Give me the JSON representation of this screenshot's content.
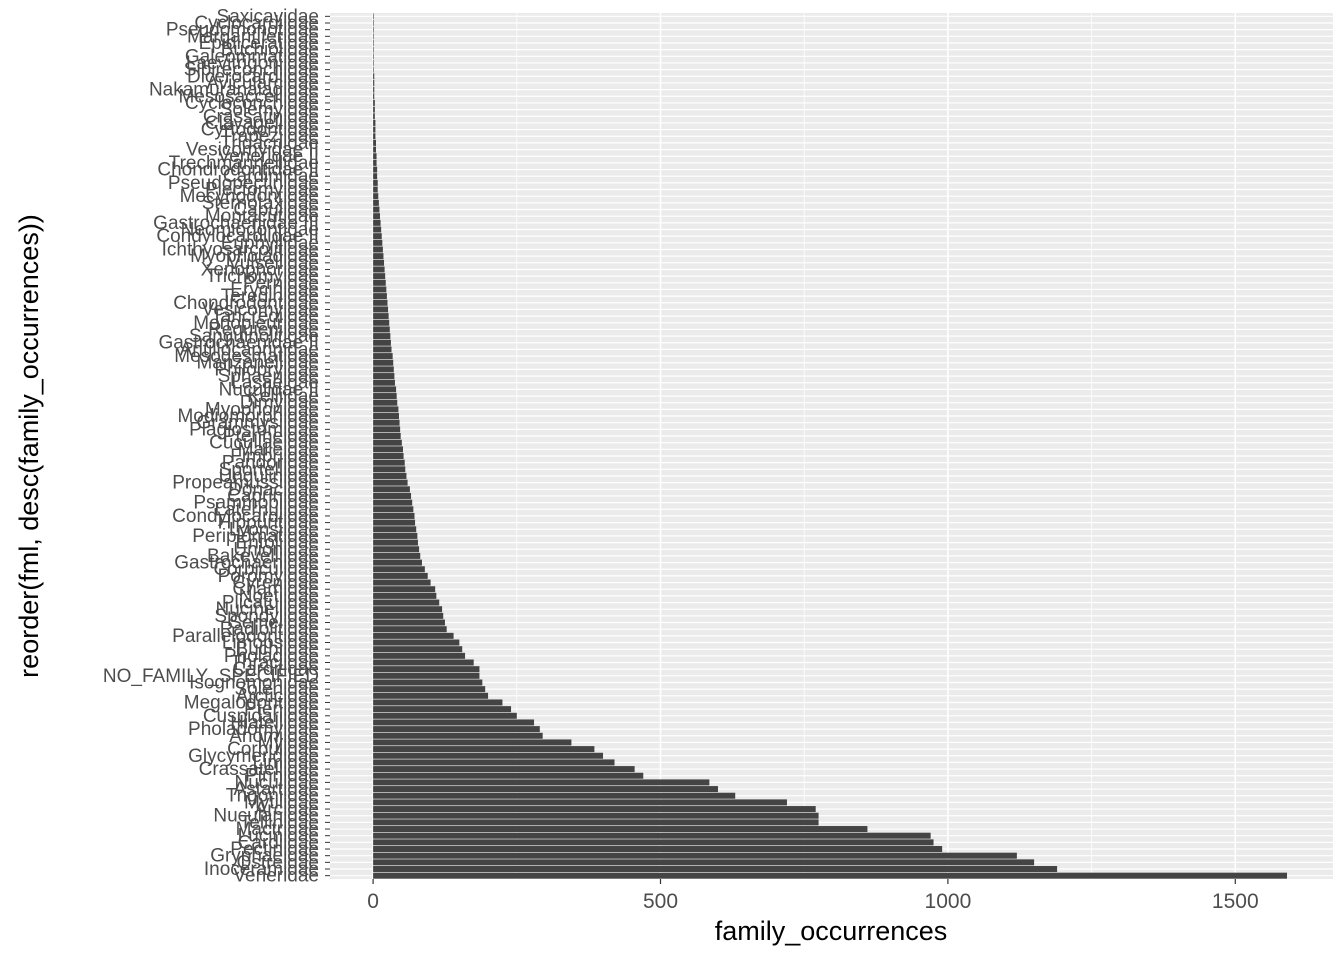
{
  "chart_data": {
    "type": "bar",
    "orientation": "horizontal",
    "xlabel": "family_occurrences",
    "ylabel": "reorder(fml, desc(family_occurrences))",
    "xlim": [
      -75,
      1670
    ],
    "x_ticks": [
      0,
      500,
      1000,
      1500
    ],
    "x_tick_labels": [
      "0",
      "500",
      "1000",
      "1500"
    ],
    "grid": true,
    "legend": "none",
    "colors": {
      "panel": "#ebebeb",
      "grid": "#ffffff",
      "bar": "#444444",
      "text": "#4d4d4d"
    },
    "categories": [
      "Veneridae",
      "Inoceramidae",
      "Ostreidae",
      "Gryphaeidae",
      "Pectinidae",
      "Cardiidae",
      "Lucinidae",
      "Mactridae",
      "Tellinidae",
      "Nuculanidae",
      "Arcidae",
      "Mytilidae",
      "Trigoniidae",
      "Astartidae",
      "Nuculidae",
      "Pinnidae",
      "Crassatellidae",
      "Limidae",
      "Glycymerididae",
      "Corbulidae",
      "Myidae",
      "Anomiidae",
      "Pholadomyidae",
      "Hiatellidae",
      "Cuspidariidae",
      "Pteriidae",
      "Megalodontidae",
      "Arcticidae",
      "Solenidae",
      "Isognomonidae",
      "NO_FAMILY_SPECIFIED",
      "Carditidae",
      "Thraciidae",
      "Pholadidae",
      "Buchiidae",
      "Limopsidae",
      "Parallelodontidae",
      "Radiolitidae",
      "Semelidae",
      "Spondylidae",
      "Nucinellidae",
      "Plicatulidae",
      "Noetiidae",
      "Chamidae",
      "Cyrenidae",
      "Poromyidae",
      "Corbiculidae",
      "Gastrochaenidae",
      "Bakevelliidae",
      "Unionidae",
      "Entoliidae",
      "Periplomatidae",
      "Lyonsiidae",
      "Hippuritidae",
      "Condylocardiidae",
      "Laternulidae",
      "Psammobiidae",
      "Caprinidae",
      "Donacidae",
      "Propeamussiidae",
      "Ungulinidae",
      "Sportellidae",
      "Pandoridae",
      "Fimbriidae",
      "Malleidae",
      "Cucullaeidae",
      "Pterineidae",
      "Plagiostomidae",
      "Grammysiidae",
      "Modiomorphidae",
      "Myophoriidae",
      "Dimyidae",
      "Kelliidae",
      "Nuculidae II",
      "Lasaeidae",
      "Sphaeriidae",
      "Philobryidae",
      "Manzanellidae",
      "Mesodesmatidae",
      "Antillocaprinidae",
      "Gastrochaenidae II",
      "Sanguinolitidae",
      "Requieniidae",
      "Monopleuridae",
      "Tancrediidae",
      "Vesicomyidae",
      "Chondrodontidae",
      "Teredinidae",
      "Erycinidae",
      "Pernidae",
      "Trichomyidae",
      "Xenophoridae",
      "Vulsellidae",
      "Myopholadidae",
      "Ichthyosarcolitidae",
      "Euphyllidae",
      "Condylocardiidae II",
      "Neomiodontidae",
      "Gastrochaenidae III",
      "Montacutidae",
      "Capulidae",
      "Sternotaxidae",
      "Mecynodontidae",
      "Plectomyidae",
      "Pseudopectinidae",
      "Cardiniidae",
      "Chondrodontidae II",
      "Trechmannellidae",
      "Veneridae II",
      "Vesicomyidae II",
      "Tridacnidae",
      "Trapeziidae",
      "Cyrtodontidae",
      "Clavagellidae",
      "Crassatinidae",
      "Solemyidae",
      "Cycloconchidae",
      "Mesosaccellidae",
      "Nakamuranaiadidae",
      "Avicularcidae",
      "Dicerocardiidae",
      "Sibireconchidae",
      "Laevitrigoniidae",
      "Galeommatidae",
      "Buchiolidae",
      "Epidiceratidae",
      "Margaritiferidae",
      "Pseudomonotidae",
      "Cyclocardiidae",
      "Saxicavidae"
    ],
    "values": [
      1590,
      1190,
      1150,
      1120,
      990,
      975,
      970,
      860,
      775,
      775,
      770,
      720,
      630,
      600,
      585,
      470,
      455,
      420,
      400,
      385,
      345,
      295,
      290,
      280,
      250,
      240,
      225,
      200,
      195,
      190,
      185,
      185,
      175,
      160,
      155,
      150,
      140,
      128,
      125,
      122,
      120,
      115,
      110,
      108,
      100,
      95,
      90,
      85,
      82,
      80,
      78,
      77,
      75,
      73,
      72,
      70,
      68,
      66,
      64,
      60,
      58,
      56,
      55,
      53,
      52,
      50,
      48,
      47,
      46,
      45,
      44,
      42,
      41,
      40,
      38,
      37,
      36,
      35,
      34,
      32,
      31,
      30,
      29,
      28,
      27,
      26,
      25,
      24,
      23,
      22,
      21,
      20,
      19,
      18,
      17,
      16,
      15,
      14,
      13,
      12,
      11,
      10,
      9,
      8,
      8,
      7,
      7,
      6,
      6,
      5,
      5,
      4,
      4,
      4,
      3,
      3,
      3,
      2,
      2,
      2,
      2,
      1,
      1,
      1,
      1,
      1,
      1,
      1,
      1,
      1
    ]
  }
}
